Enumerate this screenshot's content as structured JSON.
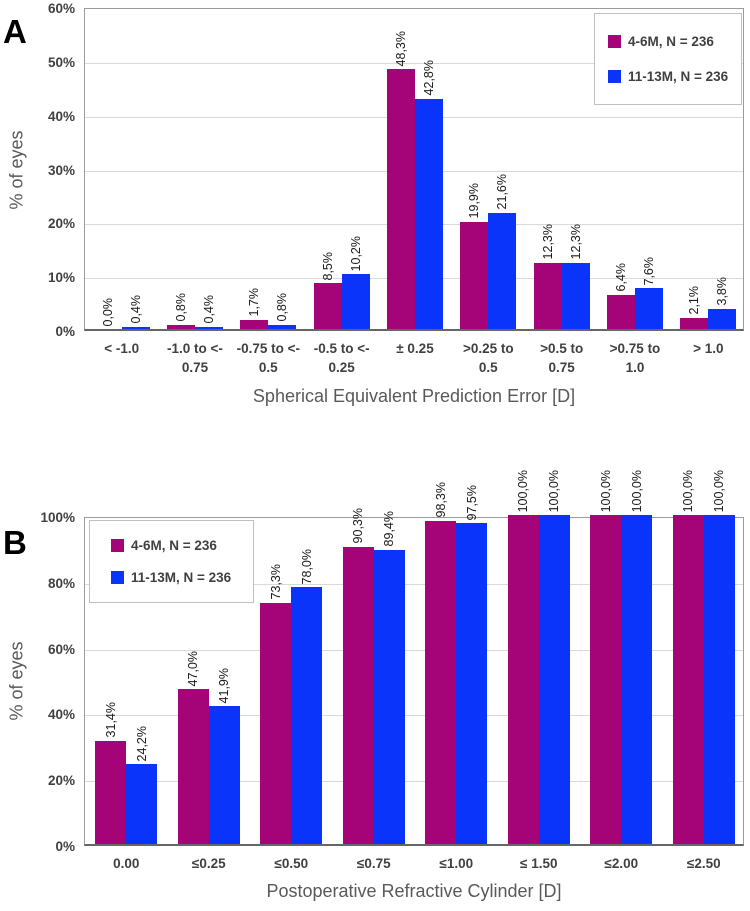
{
  "figure": {
    "panels": [
      {
        "letter": "A"
      },
      {
        "letter": "B"
      }
    ]
  },
  "colors": {
    "series_4_6m": "#A50378",
    "series_11_13m": "#0A34FA",
    "gridline": "#D9D9D9",
    "tick_text": "#404040",
    "axis_title_text": "#595959"
  },
  "chart_data": [
    {
      "type": "bar",
      "panel_letter": "A",
      "title": "",
      "xlabel": "Spherical Equivalent Prediction Error [D]",
      "ylabel": "% of eyes",
      "ylim": [
        0,
        60
      ],
      "grid": true,
      "legend_position": "top-right",
      "ytick_values": [
        0,
        10,
        20,
        30,
        40,
        50,
        60
      ],
      "yticks": [
        "0%",
        "10%",
        "20%",
        "30%",
        "40%",
        "50%",
        "60%"
      ],
      "categories": [
        "< -1.0",
        "-1.0 to <-\n0.75",
        "-0.75 to <-\n0.5",
        "-0.5 to <-\n0.25",
        "± 0.25",
        ">0.25 to\n0.5",
        ">0.5 to\n0.75",
        ">0.75 to\n1.0",
        "> 1.0"
      ],
      "series": [
        {
          "name": "4-6M, N = 236",
          "color": "#A50378",
          "values": [
            0.0,
            0.8,
            1.7,
            8.5,
            48.3,
            19.9,
            12.3,
            6.4,
            2.1
          ],
          "labels": [
            "0,0%",
            "0,8%",
            "1,7%",
            "8,5%",
            "48,3%",
            "19,9%",
            "12,3%",
            "6,4%",
            "2,1%"
          ]
        },
        {
          "name": "11-13M, N = 236",
          "color": "#0A34FA",
          "values": [
            0.4,
            0.4,
            0.8,
            10.2,
            42.8,
            21.6,
            12.3,
            7.6,
            3.8
          ],
          "labels": [
            "0,4%",
            "0,4%",
            "0,8%",
            "10,2%",
            "42,8%",
            "21,6%",
            "12,3%",
            "7,6%",
            "3,8%"
          ]
        }
      ]
    },
    {
      "type": "bar",
      "panel_letter": "B",
      "title": "",
      "xlabel": "Postoperative Refractive Cylinder [D]",
      "ylabel": "% of eyes",
      "ylim": [
        0,
        100
      ],
      "grid": true,
      "legend_position": "top-left",
      "ytick_values": [
        0,
        20,
        40,
        60,
        80,
        100
      ],
      "yticks": [
        "0%",
        "20%",
        "40%",
        "60%",
        "80%",
        "100%"
      ],
      "categories": [
        "0.00",
        "≤0.25",
        "≤0.50",
        "≤0.75",
        "≤1.00",
        "≤ 1.50",
        "≤2.00",
        "≤2.50"
      ],
      "series": [
        {
          "name": "4-6M, N = 236",
          "color": "#A50378",
          "values": [
            31.4,
            47.0,
            73.3,
            90.3,
            98.3,
            100.0,
            100.0,
            100.0
          ],
          "labels": [
            "31,4%",
            "47,0%",
            "73,3%",
            "90,3%",
            "98,3%",
            "100,0%",
            "100,0%",
            "100,0%"
          ]
        },
        {
          "name": "11-13M, N = 236",
          "color": "#0A34FA",
          "values": [
            24.2,
            41.9,
            78.0,
            89.4,
            97.5,
            100.0,
            100.0,
            100.0
          ],
          "labels": [
            "24,2%",
            "41,9%",
            "78,0%",
            "89,4%",
            "97,5%",
            "100,0%",
            "100,0%",
            "100,0%"
          ]
        }
      ]
    }
  ]
}
